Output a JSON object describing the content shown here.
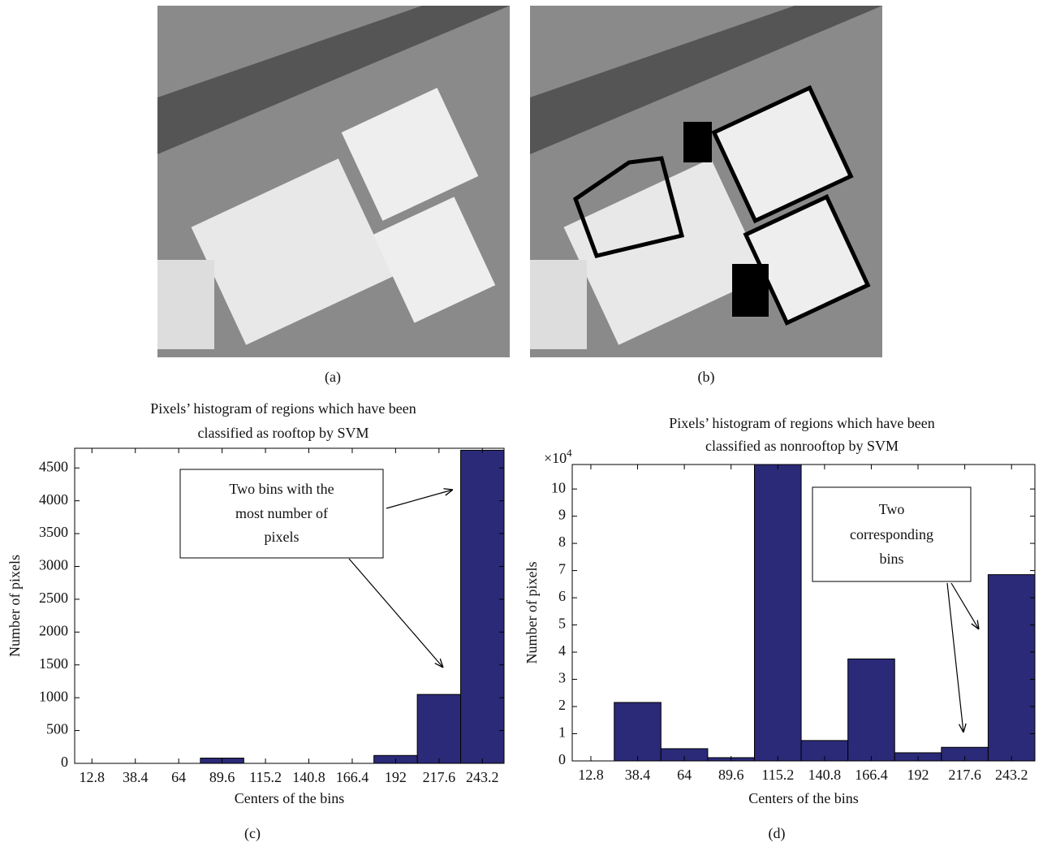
{
  "captions": [
    "(a)",
    "(b)",
    "(c)",
    "(d)"
  ],
  "chart_data": [
    {
      "type": "bar",
      "title": [
        "Pixels’ histogram of regions which have been",
        "classified as rooftop by SVM"
      ],
      "x_label": "Centers of the bins",
      "y_label": "Number of pixels",
      "x": [
        12.8,
        38.4,
        64,
        89.6,
        115.2,
        140.8,
        166.4,
        192,
        217.6,
        243.2
      ],
      "values": [
        0,
        0,
        0,
        80,
        0,
        0,
        0,
        120,
        1050,
        4770
      ],
      "color": "#2b2a78",
      "xlim": [
        2.6,
        256
      ],
      "xticks": [
        12.8,
        38.4,
        64,
        89.6,
        115.2,
        140.8,
        166.4,
        192,
        217.6,
        243.2
      ],
      "ylim": [
        0,
        4800
      ],
      "yticks": [
        0,
        500,
        1000,
        1500,
        2000,
        2500,
        3000,
        3500,
        4000,
        4500
      ],
      "annotations": [
        {
          "lines": [
            "Two bins with the",
            "most number of",
            "pixels"
          ]
        }
      ]
    },
    {
      "type": "bar",
      "title": [
        "Pixels’ histogram of regions which have been",
        "classified as nonrooftop by SVM"
      ],
      "x_label": "Centers of the bins",
      "y_label": "Number of pixels",
      "y_scale_label": {
        "base": "×10",
        "exponent": "4"
      },
      "x": [
        12.8,
        38.4,
        64,
        89.6,
        115.2,
        140.8,
        166.4,
        192,
        217.6,
        243.2
      ],
      "values": [
        0,
        2.15,
        0.45,
        0.12,
        10.9,
        0.75,
        3.75,
        0.3,
        0.5,
        6.85
      ],
      "color": "#2b2a78",
      "xlim": [
        2.6,
        256
      ],
      "xticks": [
        12.8,
        38.4,
        64,
        89.6,
        115.2,
        140.8,
        166.4,
        192,
        217.6,
        243.2
      ],
      "ylim": [
        0,
        10.9
      ],
      "yticks": [
        0,
        1,
        2,
        3,
        4,
        5,
        6,
        7,
        8,
        9,
        10
      ],
      "annotations": [
        {
          "lines": [
            "Two",
            "corresponding",
            "bins"
          ]
        }
      ]
    }
  ]
}
